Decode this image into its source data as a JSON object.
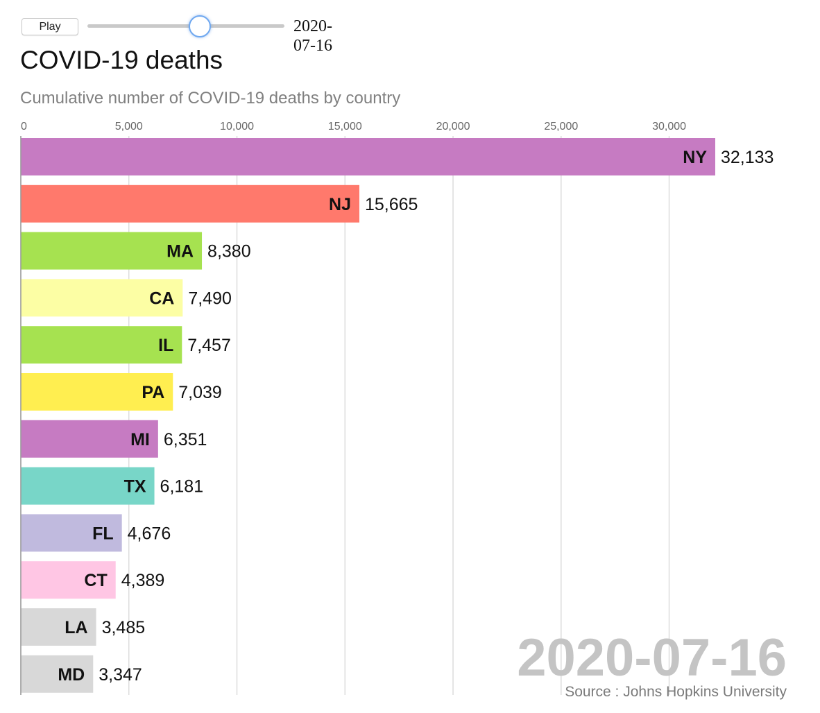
{
  "controls": {
    "play_label": "Play",
    "current_date": "2020-07-16",
    "slider_progress": 0.57
  },
  "header": {
    "title": "COVID-19 deaths",
    "subtitle": "Cumulative number of COVID-19 deaths by country"
  },
  "chart_data": {
    "type": "bar",
    "orientation": "horizontal",
    "title": "COVID-19 deaths",
    "subtitle": "Cumulative number of COVID-19 deaths by country",
    "date": "2020-07-16",
    "source": "Source : Johns Hopkins University",
    "xlim": [
      0,
      32133
    ],
    "x_ticks": [
      0,
      5000,
      10000,
      15000,
      20000,
      25000,
      30000
    ],
    "x_tick_labels": [
      "0",
      "5,000",
      "10,000",
      "15,000",
      "20,000",
      "25,000",
      "30,000"
    ],
    "grid": true,
    "categories": [
      "NY",
      "NJ",
      "MA",
      "CA",
      "IL",
      "PA",
      "MI",
      "TX",
      "FL",
      "CT",
      "LA",
      "MD"
    ],
    "values": [
      32133,
      15665,
      8380,
      7490,
      7457,
      7039,
      6351,
      6181,
      4676,
      4389,
      3485,
      3347
    ],
    "value_labels": [
      "32,133",
      "15,665",
      "8,380",
      "7,490",
      "7,457",
      "7,039",
      "6,351",
      "6,181",
      "4,676",
      "4,389",
      "3,485",
      "3,347"
    ],
    "colors": [
      "#c67bc2",
      "#ff796c",
      "#a6e250",
      "#fcfea4",
      "#a6e250",
      "#ffee50",
      "#c67bc2",
      "#78d6c8",
      "#c0bade",
      "#ffc6e4",
      "#d8d8d8",
      "#d8d8d8"
    ]
  }
}
